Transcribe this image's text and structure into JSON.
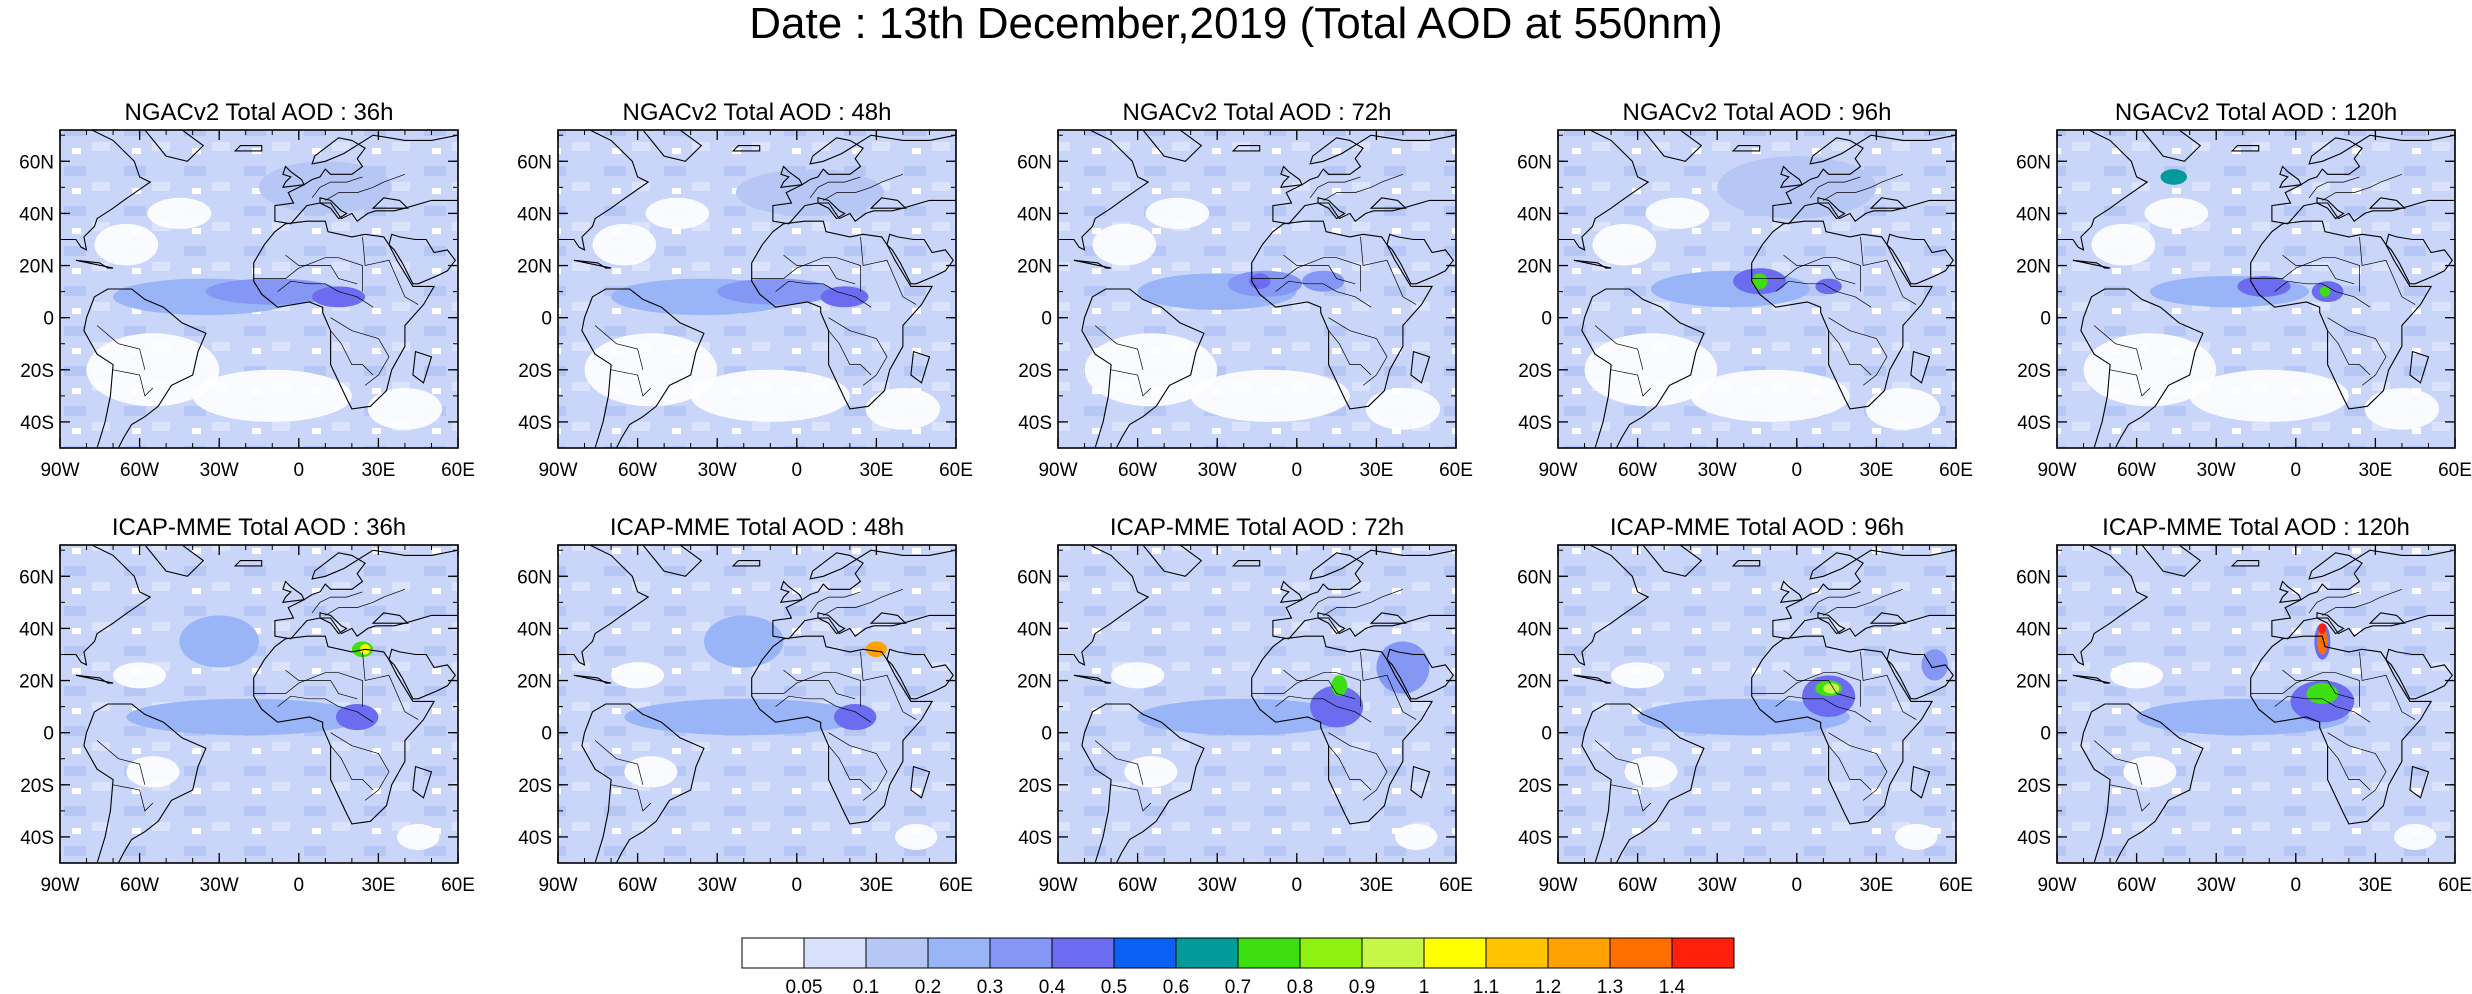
{
  "title": "Date : 13th December,2019 (Total AOD at 550nm)",
  "panels": [
    {
      "title": "NGACv2 Total AOD : 36h",
      "model": "NGACv2",
      "lead": "36h"
    },
    {
      "title": "NGACv2 Total AOD : 48h",
      "model": "NGACv2",
      "lead": "48h"
    },
    {
      "title": "NGACv2 Total AOD : 72h",
      "model": "NGACv2",
      "lead": "72h"
    },
    {
      "title": "NGACv2 Total AOD : 96h",
      "model": "NGACv2",
      "lead": "96h"
    },
    {
      "title": "NGACv2 Total AOD : 120h",
      "model": "NGACv2",
      "lead": "120h"
    },
    {
      "title": "ICAP-MME Total AOD : 36h",
      "model": "ICAP-MME",
      "lead": "36h"
    },
    {
      "title": "ICAP-MME Total AOD : 48h",
      "model": "ICAP-MME",
      "lead": "48h"
    },
    {
      "title": "ICAP-MME Total AOD : 72h",
      "model": "ICAP-MME",
      "lead": "72h"
    },
    {
      "title": "ICAP-MME Total AOD : 96h",
      "model": "ICAP-MME",
      "lead": "96h"
    },
    {
      "title": "ICAP-MME Total AOD : 120h",
      "model": "ICAP-MME",
      "lead": "120h"
    }
  ],
  "axes": {
    "lon_range": [
      -90,
      60
    ],
    "lat_range": [
      -50,
      72
    ],
    "lon_ticks": [
      {
        "value": -90,
        "label": "90W"
      },
      {
        "value": -60,
        "label": "60W"
      },
      {
        "value": -30,
        "label": "30W"
      },
      {
        "value": 0,
        "label": "0"
      },
      {
        "value": 30,
        "label": "30E"
      },
      {
        "value": 60,
        "label": "60E"
      }
    ],
    "lat_ticks": [
      {
        "value": 60,
        "label": "60N"
      },
      {
        "value": 40,
        "label": "40N"
      },
      {
        "value": 20,
        "label": "20N"
      },
      {
        "value": 0,
        "label": "0"
      },
      {
        "value": -20,
        "label": "20S"
      },
      {
        "value": -40,
        "label": "40S"
      }
    ]
  },
  "colorbar": {
    "colors": [
      "#ffffff",
      "#d7e1fb",
      "#b6c7f6",
      "#99b5f8",
      "#8497f5",
      "#6b6cf0",
      "#0a5ff5",
      "#029a9a",
      "#3edf10",
      "#8ef211",
      "#c6f747",
      "#ffff00",
      "#ffc400",
      "#ffa100",
      "#ff6e00",
      "#ff1f0a"
    ],
    "labels": [
      "0.05",
      "0.1",
      "0.2",
      "0.3",
      "0.4",
      "0.5",
      "0.6",
      "0.7",
      "0.8",
      "0.9",
      "1",
      "1.1",
      "1.2",
      "1.3",
      "1.4"
    ]
  }
}
